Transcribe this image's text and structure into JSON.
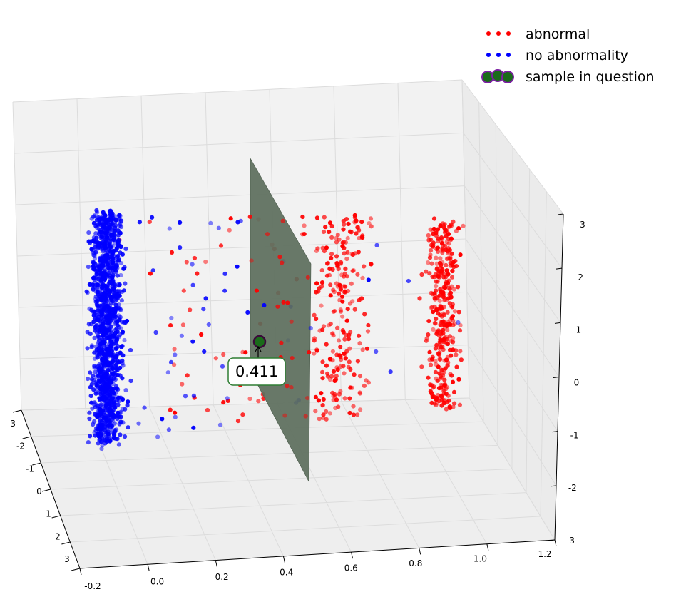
{
  "chart_data": {
    "type": "scatter",
    "projection": "3d",
    "title": "",
    "axes": {
      "x": {
        "label": "",
        "range": [
          -0.2,
          1.2
        ],
        "ticks": [
          "-0.2",
          "0.0",
          "0.2",
          "0.4",
          "0.6",
          "0.8",
          "1.0",
          "1.2"
        ]
      },
      "y": {
        "label": "",
        "range": [
          -3,
          3
        ],
        "ticks": [
          "-3",
          "-2",
          "-1",
          "0",
          "1",
          "2",
          "3"
        ]
      },
      "z": {
        "label": "",
        "range": [
          -3,
          3
        ],
        "ticks": [
          "-3",
          "-2",
          "-1",
          "0",
          "1",
          "2",
          "3"
        ]
      }
    },
    "grid": true,
    "legend": {
      "placement": "top-right",
      "entries": [
        {
          "label": "abnormal",
          "color": "#ff0000",
          "marker": "dot"
        },
        {
          "label": "no abnormality",
          "color": "#0000ff",
          "marker": "dot"
        },
        {
          "label": "sample in question",
          "color": "#1a6b1a",
          "edge_color": "#7b1fa2",
          "marker": "large-dot"
        }
      ]
    },
    "series": [
      {
        "name": "abnormal",
        "color": "#ff0000",
        "clusters": [
          {
            "x_center": 1.0,
            "spread": "dense",
            "n": 350
          },
          {
            "x_center": 0.7,
            "spread": "medium",
            "n": 220
          },
          {
            "x_center": 0.5,
            "spread": "sparse",
            "n": 50
          },
          {
            "x_center": 0.25,
            "spread": "sparse",
            "n": 25
          }
        ]
      },
      {
        "name": "no abnormality",
        "color": "#0000ff",
        "clusters": [
          {
            "x_center": 0.0,
            "spread": "dense",
            "n": 1300
          },
          {
            "x_center": 0.2,
            "spread": "sparse",
            "n": 40
          },
          {
            "x_center": 0.5,
            "spread": "sparse",
            "n": 12
          },
          {
            "x_center": 0.9,
            "spread": "sparse",
            "n": 6
          }
        ]
      }
    ],
    "decision_plane": {
      "x": 0.5,
      "color": "#5c6e5c"
    },
    "sample_in_question": {
      "x": 0.45,
      "y": 0.0,
      "z": 0.8,
      "score_label": "0.411"
    }
  }
}
